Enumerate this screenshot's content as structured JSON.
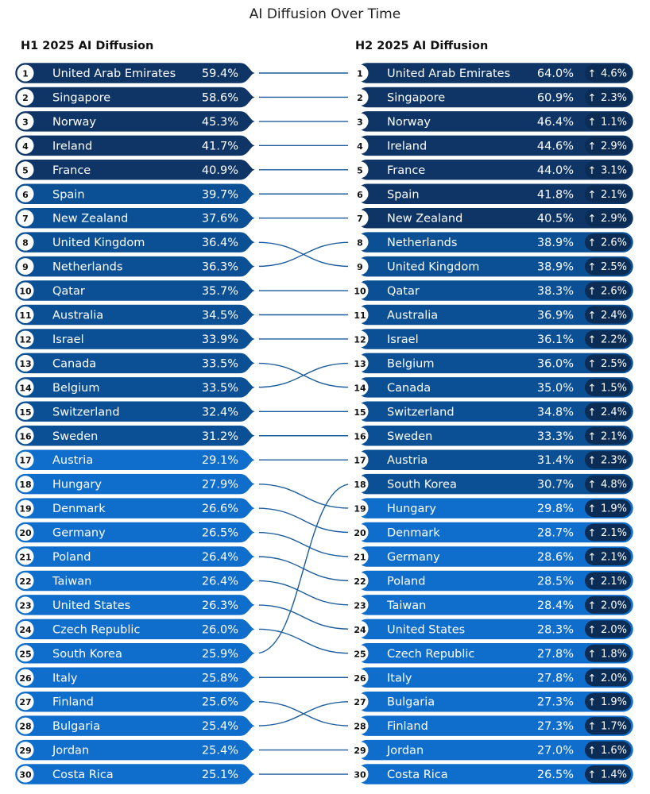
{
  "chart_data": {
    "type": "bump",
    "title": "AI Diffusion Over Time",
    "left_title": "H1 2025 AI Diffusion",
    "right_title": "H2 2025 AI Diffusion",
    "color_scale": {
      "high": "#0e3566",
      "mid": "#0b4f94",
      "low": "#0f6dcc",
      "badge": "#0b2d55",
      "connector": "#1d5c9c"
    },
    "left": [
      {
        "rank": "1",
        "country": "United Arab Emirates",
        "value": "59.4%"
      },
      {
        "rank": "2",
        "country": "Singapore",
        "value": "58.6%"
      },
      {
        "rank": "3",
        "country": "Norway",
        "value": "45.3%"
      },
      {
        "rank": "4",
        "country": "Ireland",
        "value": "41.7%"
      },
      {
        "rank": "5",
        "country": "France",
        "value": "40.9%"
      },
      {
        "rank": "6",
        "country": "Spain",
        "value": "39.7%"
      },
      {
        "rank": "7",
        "country": "New Zealand",
        "value": "37.6%"
      },
      {
        "rank": "8",
        "country": "United Kingdom",
        "value": "36.4%"
      },
      {
        "rank": "9",
        "country": "Netherlands",
        "value": "36.3%"
      },
      {
        "rank": "10",
        "country": "Qatar",
        "value": "35.7%"
      },
      {
        "rank": "11",
        "country": "Australia",
        "value": "34.5%"
      },
      {
        "rank": "12",
        "country": "Israel",
        "value": "33.9%"
      },
      {
        "rank": "13",
        "country": "Canada",
        "value": "33.5%"
      },
      {
        "rank": "14",
        "country": "Belgium",
        "value": "33.5%"
      },
      {
        "rank": "15",
        "country": "Switzerland",
        "value": "32.4%"
      },
      {
        "rank": "16",
        "country": "Sweden",
        "value": "31.2%"
      },
      {
        "rank": "17",
        "country": "Austria",
        "value": "29.1%"
      },
      {
        "rank": "18",
        "country": "Hungary",
        "value": "27.9%"
      },
      {
        "rank": "19",
        "country": "Denmark",
        "value": "26.6%"
      },
      {
        "rank": "20",
        "country": "Germany",
        "value": "26.5%"
      },
      {
        "rank": "21",
        "country": "Poland",
        "value": "26.4%"
      },
      {
        "rank": "22",
        "country": "Taiwan",
        "value": "26.4%"
      },
      {
        "rank": "23",
        "country": "United States",
        "value": "26.3%"
      },
      {
        "rank": "24",
        "country": "Czech Republic",
        "value": "26.0%"
      },
      {
        "rank": "25",
        "country": "South Korea",
        "value": "25.9%"
      },
      {
        "rank": "26",
        "country": "Italy",
        "value": "25.8%"
      },
      {
        "rank": "27",
        "country": "Finland",
        "value": "25.6%"
      },
      {
        "rank": "28",
        "country": "Bulgaria",
        "value": "25.4%"
      },
      {
        "rank": "29",
        "country": "Jordan",
        "value": "25.4%"
      },
      {
        "rank": "30",
        "country": "Costa Rica",
        "value": "25.1%"
      }
    ],
    "right": [
      {
        "rank": "1",
        "country": "United Arab Emirates",
        "value": "64.0%",
        "change": "4.6%"
      },
      {
        "rank": "2",
        "country": "Singapore",
        "value": "60.9%",
        "change": "2.3%"
      },
      {
        "rank": "3",
        "country": "Norway",
        "value": "46.4%",
        "change": "1.1%"
      },
      {
        "rank": "4",
        "country": "Ireland",
        "value": "44.6%",
        "change": "2.9%"
      },
      {
        "rank": "5",
        "country": "France",
        "value": "44.0%",
        "change": "3.1%"
      },
      {
        "rank": "6",
        "country": "Spain",
        "value": "41.8%",
        "change": "2.1%"
      },
      {
        "rank": "7",
        "country": "New Zealand",
        "value": "40.5%",
        "change": "2.9%"
      },
      {
        "rank": "8",
        "country": "Netherlands",
        "value": "38.9%",
        "change": "2.6%"
      },
      {
        "rank": "9",
        "country": "United Kingdom",
        "value": "38.9%",
        "change": "2.5%"
      },
      {
        "rank": "10",
        "country": "Qatar",
        "value": "38.3%",
        "change": "2.6%"
      },
      {
        "rank": "11",
        "country": "Australia",
        "value": "36.9%",
        "change": "2.4%"
      },
      {
        "rank": "12",
        "country": "Israel",
        "value": "36.1%",
        "change": "2.2%"
      },
      {
        "rank": "13",
        "country": "Belgium",
        "value": "36.0%",
        "change": "2.5%"
      },
      {
        "rank": "14",
        "country": "Canada",
        "value": "35.0%",
        "change": "1.5%"
      },
      {
        "rank": "15",
        "country": "Switzerland",
        "value": "34.8%",
        "change": "2.4%"
      },
      {
        "rank": "16",
        "country": "Sweden",
        "value": "33.3%",
        "change": "2.1%"
      },
      {
        "rank": "17",
        "country": "Austria",
        "value": "31.4%",
        "change": "2.3%"
      },
      {
        "rank": "18",
        "country": "South Korea",
        "value": "30.7%",
        "change": "4.8%"
      },
      {
        "rank": "19",
        "country": "Hungary",
        "value": "29.8%",
        "change": "1.9%"
      },
      {
        "rank": "20",
        "country": "Denmark",
        "value": "28.7%",
        "change": "2.1%"
      },
      {
        "rank": "21",
        "country": "Germany",
        "value": "28.6%",
        "change": "2.1%"
      },
      {
        "rank": "22",
        "country": "Poland",
        "value": "28.5%",
        "change": "2.1%"
      },
      {
        "rank": "23",
        "country": "Taiwan",
        "value": "28.4%",
        "change": "2.0%"
      },
      {
        "rank": "24",
        "country": "United States",
        "value": "28.3%",
        "change": "2.0%"
      },
      {
        "rank": "25",
        "country": "Czech Republic",
        "value": "27.8%",
        "change": "1.8%"
      },
      {
        "rank": "26",
        "country": "Italy",
        "value": "27.8%",
        "change": "2.0%"
      },
      {
        "rank": "27",
        "country": "Bulgaria",
        "value": "27.3%",
        "change": "1.9%"
      },
      {
        "rank": "28",
        "country": "Finland",
        "value": "27.3%",
        "change": "1.7%"
      },
      {
        "rank": "29",
        "country": "Jordan",
        "value": "27.0%",
        "change": "1.6%"
      },
      {
        "rank": "30",
        "country": "Costa Rica",
        "value": "26.5%",
        "change": "1.4%"
      }
    ],
    "change_icon": "arrow-up-icon"
  }
}
